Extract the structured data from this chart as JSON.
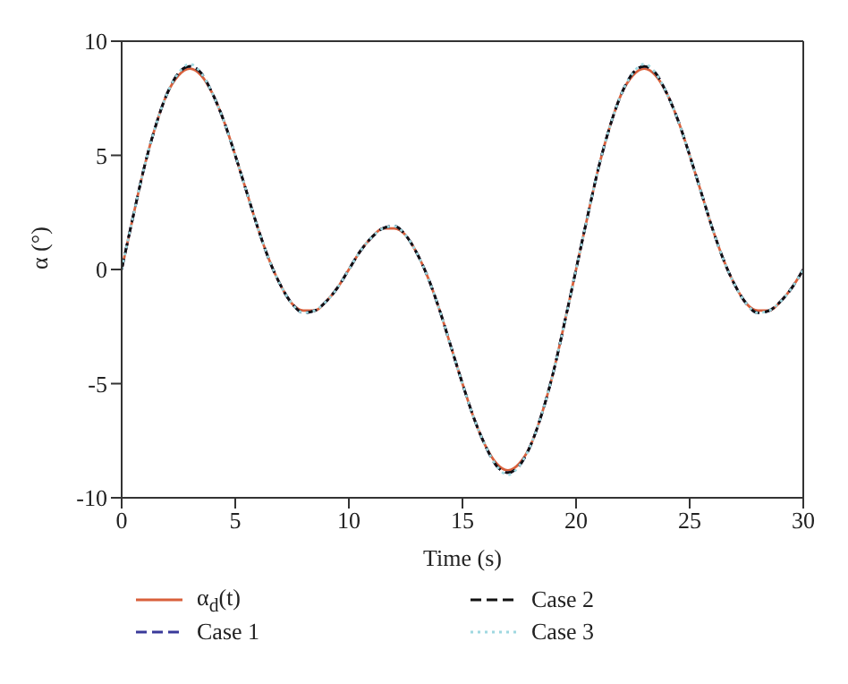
{
  "chart_data": {
    "type": "line",
    "xlabel": "Time (s)",
    "ylabel": "α (°)",
    "x": [
      0,
      0.5,
      1,
      1.5,
      2,
      2.5,
      3,
      3.5,
      4,
      4.5,
      5,
      5.5,
      6,
      6.5,
      7,
      7.5,
      8,
      8.5,
      9,
      9.5,
      10,
      10.5,
      11,
      11.5,
      12,
      12.5,
      13,
      13.5,
      14,
      14.5,
      15,
      15.5,
      16,
      16.5,
      17,
      17.5,
      18,
      18.5,
      19,
      19.5,
      20,
      20.5,
      21,
      21.5,
      22,
      22.5,
      23,
      23.5,
      24,
      24.5,
      25,
      25.5,
      26,
      26.5,
      27,
      27.5,
      28,
      28.5,
      29,
      29.5,
      30
    ],
    "series": [
      {
        "name": "α$_{d}$(t)",
        "color": "#d9603b",
        "line_style": "solid",
        "values": [
          0,
          2.3,
          4.5,
          6.3,
          7.7,
          8.5,
          8.8,
          8.5,
          7.7,
          6.5,
          5,
          3.4,
          1.8,
          0.4,
          -0.7,
          -1.5,
          -1.8,
          -1.8,
          -1.4,
          -0.8,
          0,
          0.8,
          1.4,
          1.8,
          1.8,
          1.5,
          0.7,
          -0.4,
          -1.8,
          -3.4,
          -5,
          -6.5,
          -7.7,
          -8.5,
          -8.8,
          -8.5,
          -7.7,
          -6.3,
          -4.5,
          -2.3,
          0,
          2.3,
          4.5,
          6.3,
          7.7,
          8.5,
          8.8,
          8.5,
          7.7,
          6.5,
          5,
          3.4,
          1.8,
          0.4,
          -0.7,
          -1.5,
          -1.8,
          -1.8,
          -1.4,
          -0.8,
          0
        ]
      },
      {
        "name": "Case 1",
        "color": "#3a3a9a",
        "line_style": "dashed",
        "values": [
          0,
          2.3,
          4.5,
          6.3,
          7.7,
          8.6,
          8.9,
          8.6,
          7.7,
          6.5,
          5,
          3.4,
          1.8,
          0.4,
          -0.7,
          -1.5,
          -1.9,
          -1.8,
          -1.4,
          -0.8,
          0,
          0.8,
          1.4,
          1.8,
          1.9,
          1.5,
          0.7,
          -0.4,
          -1.8,
          -3.4,
          -5,
          -6.5,
          -7.7,
          -8.6,
          -8.9,
          -8.6,
          -7.7,
          -6.3,
          -4.5,
          -2.3,
          0,
          2.3,
          4.5,
          6.3,
          7.7,
          8.6,
          8.9,
          8.6,
          7.7,
          6.5,
          5,
          3.4,
          1.8,
          0.4,
          -0.7,
          -1.5,
          -1.9,
          -1.8,
          -1.4,
          -0.8,
          0
        ]
      },
      {
        "name": "Case 2",
        "color": "#111111",
        "line_style": "dashed",
        "values": [
          0,
          2.3,
          4.5,
          6.3,
          7.7,
          8.6,
          8.9,
          8.6,
          7.7,
          6.5,
          5,
          3.4,
          1.8,
          0.4,
          -0.7,
          -1.5,
          -1.9,
          -1.8,
          -1.4,
          -0.8,
          0,
          0.8,
          1.4,
          1.8,
          1.9,
          1.5,
          0.7,
          -0.4,
          -1.8,
          -3.4,
          -5,
          -6.5,
          -7.7,
          -8.6,
          -8.9,
          -8.6,
          -7.7,
          -6.3,
          -4.5,
          -2.3,
          0,
          2.3,
          4.5,
          6.3,
          7.7,
          8.6,
          8.9,
          8.6,
          7.7,
          6.5,
          5,
          3.4,
          1.8,
          0.4,
          -0.7,
          -1.5,
          -1.9,
          -1.8,
          -1.4,
          -0.8,
          0
        ]
      },
      {
        "name": "Case 3",
        "color": "#9fd8e0",
        "line_style": "dotted",
        "values": [
          0,
          2.3,
          4.5,
          6.3,
          7.7,
          8.6,
          9,
          8.6,
          7.7,
          6.5,
          5,
          3.4,
          1.8,
          0.4,
          -0.7,
          -1.5,
          -1.9,
          -1.8,
          -1.4,
          -0.8,
          0,
          0.8,
          1.4,
          1.8,
          1.9,
          1.5,
          0.7,
          -0.4,
          -1.8,
          -3.4,
          -5,
          -6.5,
          -7.7,
          -8.6,
          -9,
          -8.6,
          -7.7,
          -6.3,
          -4.5,
          -2.3,
          0,
          2.3,
          4.5,
          6.3,
          7.7,
          8.6,
          9,
          8.6,
          7.7,
          6.5,
          5,
          3.4,
          1.8,
          0.4,
          -0.7,
          -1.5,
          -1.9,
          -1.8,
          -1.4,
          -0.8,
          0
        ]
      }
    ],
    "xlim": [
      0,
      30
    ],
    "xticks": [
      0,
      5,
      10,
      15,
      20,
      25,
      30
    ],
    "ylim": [
      -10,
      10
    ],
    "yticks": [
      -10,
      -5,
      0,
      5,
      10
    ],
    "grid": false,
    "legend": "bottom",
    "marker": "none"
  }
}
